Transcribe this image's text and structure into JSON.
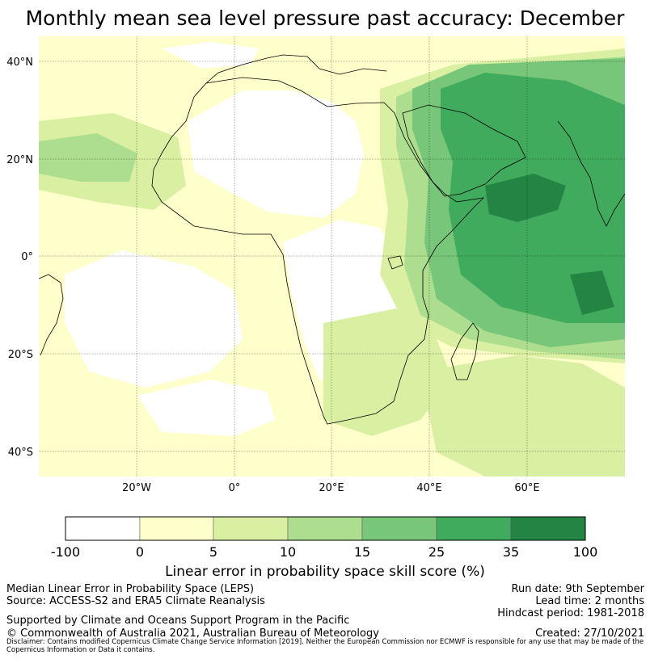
{
  "title": "Monthly mean sea level pressure past accuracy: December",
  "map": {
    "lat_labels": [
      "40°N",
      "20°N",
      "0°",
      "20°S",
      "40°S"
    ],
    "lon_labels": [
      "20°W",
      "0°",
      "20°E",
      "40°E",
      "60°E"
    ],
    "extent": {
      "lon": [
        -40,
        80
      ],
      "lat": [
        -45,
        45
      ]
    },
    "skill_colors": [
      "#ffffff",
      "#ffffcc",
      "#d9f0a3",
      "#addd8e",
      "#78c679",
      "#41ab5d",
      "#238443"
    ]
  },
  "colorbar": {
    "ticks": [
      "-100",
      "0",
      "5",
      "10",
      "15",
      "25",
      "35",
      "100"
    ],
    "label": "Linear error in probability space skill score (%)"
  },
  "info": {
    "method": "Median Linear Error in Probability Space (LEPS)",
    "source": "Source: ACCESS-S2 and ERA5 Climate Reanalysis",
    "support": "Supported by Climate and Oceans Support Program in the Pacific",
    "copyright": "© Commonwealth of Australia 2021, Australian Bureau of Meteorology",
    "disclaimer": "Disclaimer: Contains modified Copernicus Climate Change Service Information [2019]. Neither the European Commission nor ECMWF is responsible for any use that may be made of the Copernicus Information or Data it contains.",
    "run_date": "Run date: 9th September",
    "lead_time": "Lead time: 2 months",
    "hindcast": "Hindcast period: 1981-2018",
    "created": "Created: 27/10/2021"
  }
}
